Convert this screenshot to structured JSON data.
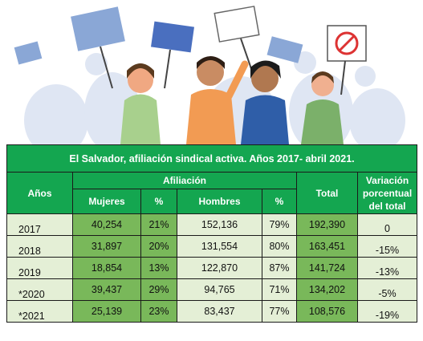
{
  "table": {
    "title": "El Salvador, afiliación sindical activa. Años 2017- abril 2021.",
    "headers": {
      "years": "Años",
      "affiliation": "Afiliación",
      "women": "Mujeres",
      "pct_women": "%",
      "men": "Hombres",
      "pct_men": "%",
      "total": "Total",
      "variation": "Variación porcentual del total"
    },
    "rows": [
      {
        "year": "2017",
        "women": "40,254",
        "pct_women": "21%",
        "men": "152,136",
        "pct_men": "79%",
        "total": "192,390",
        "variation": "0"
      },
      {
        "year": "2018",
        "women": "31,897",
        "pct_women": "20%",
        "men": "131,554",
        "pct_men": "80%",
        "total": "163,451",
        "variation": "-15%"
      },
      {
        "year": "2019",
        "women": "18,854",
        "pct_women": "13%",
        "men": "122,870",
        "pct_men": "87%",
        "total": "141,724",
        "variation": "-13%"
      },
      {
        "year": "*2020",
        "women": "39,437",
        "pct_women": "29%",
        "men": "94,765",
        "pct_men": "71%",
        "total": "134,202",
        "variation": "-5%"
      },
      {
        "year": "*2021",
        "women": "25,139",
        "pct_women": "23%",
        "men": "83,437",
        "pct_men": "77%",
        "total": "108,576",
        "variation": "-19%"
      }
    ]
  }
}
